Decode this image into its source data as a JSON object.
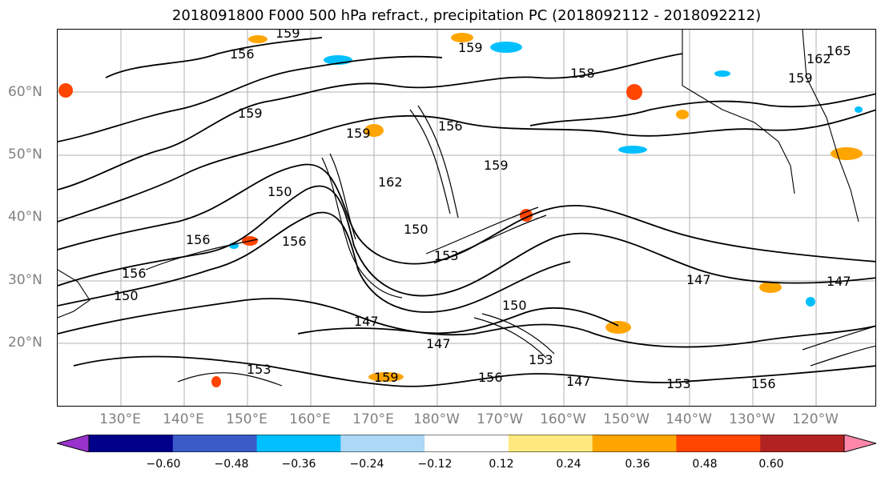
{
  "title": "2018091800 F000 500 hPa refract., precipitation PC (2018092112 - 2018092212)",
  "lat_labels": [
    "60°N",
    "50°N",
    "40°N",
    "30°N",
    "20°N"
  ],
  "lon_labels": [
    "130°E",
    "140°E",
    "150°E",
    "160°E",
    "170°E",
    "180°W",
    "170°W",
    "160°W",
    "150°W",
    "140°W",
    "130°W",
    "120°W"
  ],
  "contour_labels": [
    "159",
    "156",
    "159",
    "159",
    "156",
    "159",
    "156",
    "159",
    "156",
    "150",
    "162",
    "150",
    "156",
    "153",
    "147",
    "150",
    "153",
    "147",
    "147",
    "147",
    "153",
    "156",
    "153",
    "159",
    "150",
    "156",
    "147",
    "165",
    "162",
    "159",
    "158"
  ],
  "colorbar": {
    "ticks": [
      "−0.60",
      "−0.48",
      "−0.36",
      "−0.24",
      "−0.12",
      "0.12",
      "0.24",
      "0.36",
      "0.48",
      "0.60"
    ],
    "colors": [
      "#9932CC",
      "#00008B",
      "#3A5BC7",
      "#00BFFF",
      "#ADD8F6",
      "#FFFFFF",
      "#FFE97F",
      "#FFA500",
      "#FF4500",
      "#B22222",
      "#FF88AA"
    ]
  }
}
